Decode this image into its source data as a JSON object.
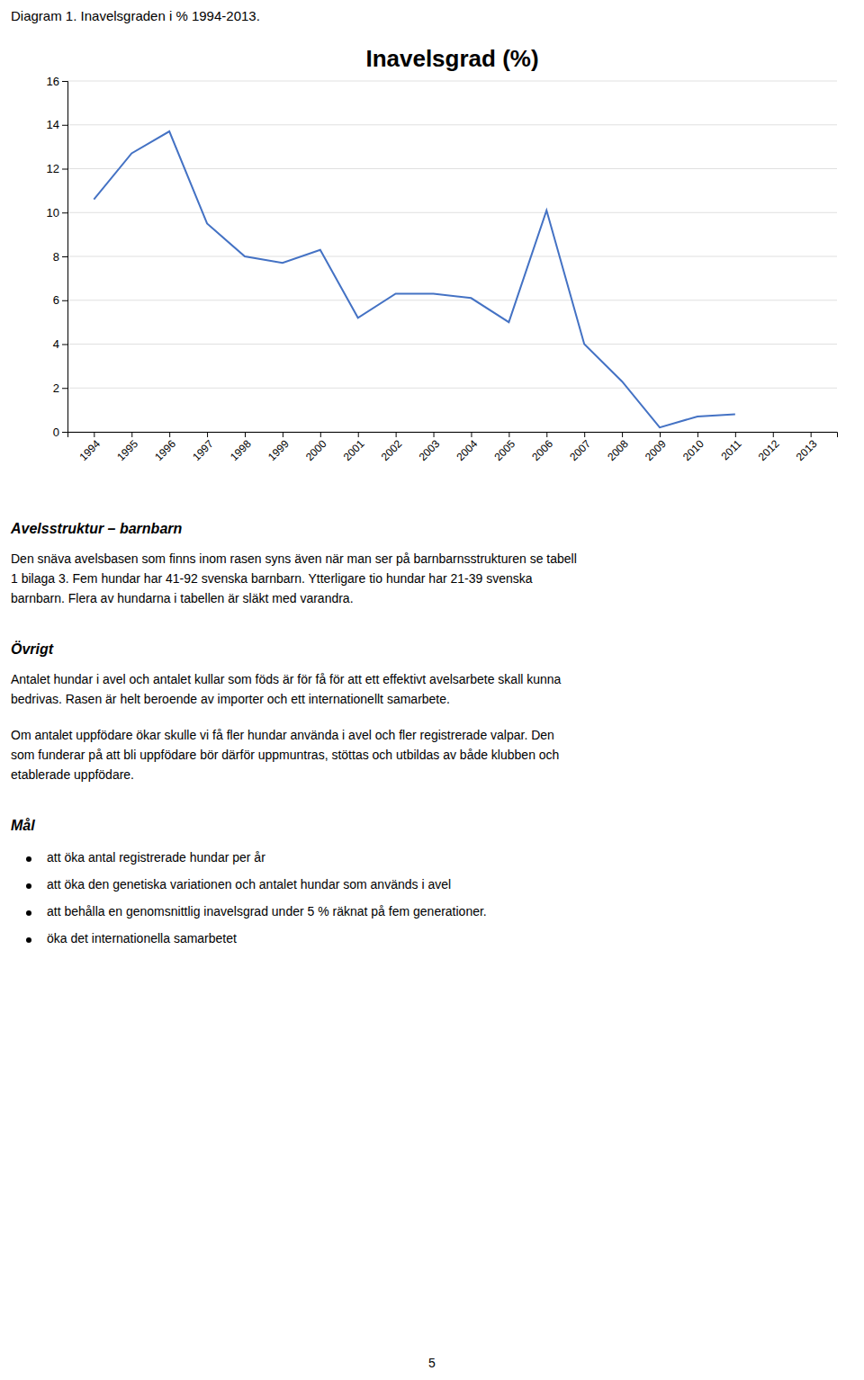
{
  "caption": "Diagram 1. Inavelsgraden i % 1994-2013.",
  "chart_data": {
    "type": "line",
    "title": "Inavelsgrad (%)",
    "x": [
      1994,
      1995,
      1996,
      1997,
      1998,
      1999,
      2000,
      2001,
      2002,
      2003,
      2004,
      2005,
      2006,
      2007,
      2008,
      2009,
      2010,
      2011,
      2012,
      2013
    ],
    "values": [
      10.6,
      12.7,
      13.7,
      9.5,
      8.0,
      7.7,
      8.3,
      5.2,
      6.3,
      6.3,
      6.1,
      5.0,
      10.1,
      4.0,
      2.3,
      0.2,
      0.7,
      0.8,
      null,
      null
    ],
    "color": "#4472C4",
    "xlim": [
      1993.3,
      2013.7
    ],
    "xticks": [
      1994,
      1995,
      1996,
      1997,
      1998,
      1999,
      2000,
      2001,
      2002,
      2003,
      2004,
      2005,
      2006,
      2007,
      2008,
      2009,
      2010,
      2011,
      2012,
      2013
    ],
    "ylim": [
      0,
      16
    ],
    "yticks": [
      0,
      2,
      4,
      6,
      8,
      10,
      12,
      14,
      16
    ],
    "grid": true
  },
  "sections": [
    {
      "heading": "Avelsstruktur – barnbarn",
      "paragraphs": [
        [
          "Den snäva avelsbasen som finns inom rasen syns även när man ser på barnbarnsstrukturen se tabell",
          "1 bilaga 3. Fem hundar har 41-92 svenska barnbarn. Ytterligare tio hundar har 21-39 svenska",
          "barnbarn. Flera av hundarna i tabellen är släkt med varandra."
        ]
      ]
    },
    {
      "heading": "Övrigt",
      "paragraphs": [
        [
          "Antalet hundar i avel och antalet kullar som föds är för få för att ett effektivt avelsarbete skall kunna",
          "bedrivas. Rasen är helt beroende av importer och ett internationellt samarbete."
        ],
        [
          "Om antalet uppfödare ökar skulle vi få fler hundar använda i avel och fler registrerade valpar. Den",
          "som funderar på att bli uppfödare bör därför uppmuntras, stöttas och utbildas av både klubben och",
          "etablerade uppfödare."
        ]
      ]
    },
    {
      "heading": "Mål",
      "bullets": [
        "att öka antal registrerade hundar per år",
        "att öka den genetiska variationen och antalet hundar som används i avel",
        "att behålla en genomsnittlig inavelsgrad under 5 % räknat på fem generationer.",
        "öka det internationella samarbetet"
      ]
    }
  ],
  "page_number": "5"
}
